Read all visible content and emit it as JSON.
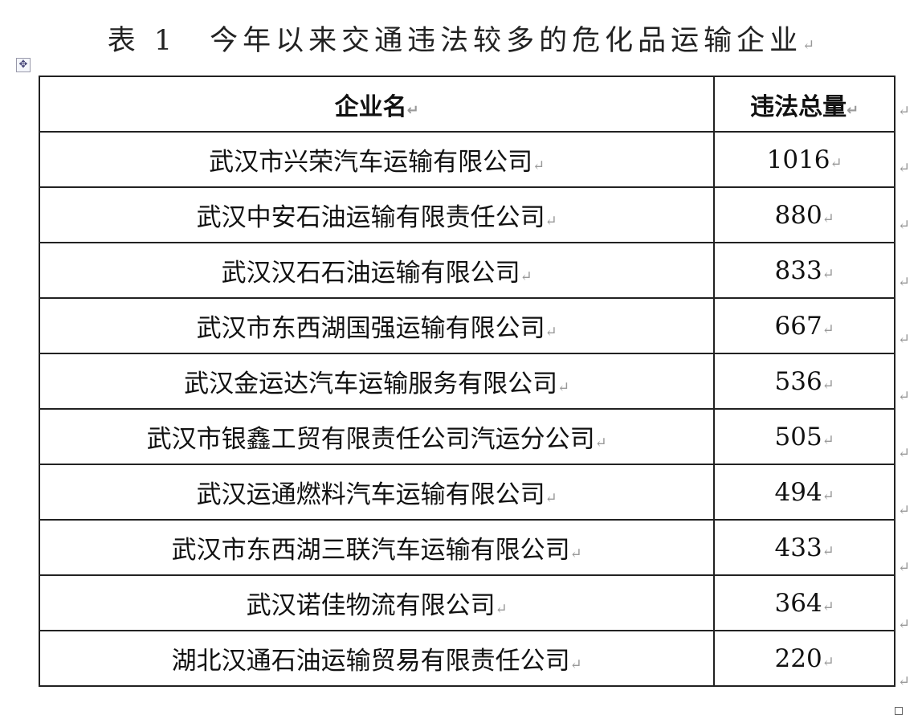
{
  "title": "表 1　今年以来交通违法较多的危化品运输企业",
  "paragraph_mark": "↵",
  "table": {
    "headers": [
      "企业名",
      "违法总量"
    ],
    "rows": [
      {
        "name": "武汉市兴荣汽车运输有限公司",
        "count": "1016"
      },
      {
        "name": "武汉中安石油运输有限责任公司",
        "count": "880"
      },
      {
        "name": "武汉汉石石油运输有限公司",
        "count": "833"
      },
      {
        "name": "武汉市东西湖国强运输有限公司",
        "count": "667"
      },
      {
        "name": "武汉金运达汽车运输服务有限公司",
        "count": "536"
      },
      {
        "name": "武汉市银鑫工贸有限责任公司汽运分公司",
        "count": "505"
      },
      {
        "name": "武汉运通燃料汽车运输有限公司",
        "count": "494"
      },
      {
        "name": "武汉市东西湖三联汽车运输有限公司",
        "count": "433"
      },
      {
        "name": "武汉诺佳物流有限公司",
        "count": "364"
      },
      {
        "name": "湖北汉通石油运输贸易有限责任公司",
        "count": "220"
      }
    ]
  }
}
